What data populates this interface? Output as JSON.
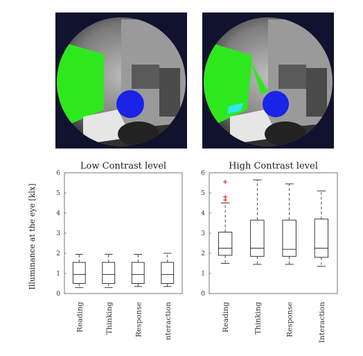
{
  "chart_data": [
    {
      "type": "box",
      "title": "Low Contrast level",
      "ylabel": "Illuminance at the eye [klx]",
      "ylim": [
        0,
        6
      ],
      "yticks": [
        "0",
        "1",
        "2",
        "3",
        "4",
        "5",
        "6"
      ],
      "categories": [
        "Reading",
        "Thinking",
        "Response",
        "nteraction"
      ],
      "boxes": [
        {
          "whislo": 0.3,
          "q1": 0.5,
          "med": 0.95,
          "q3": 1.55,
          "whishi": 1.95,
          "fliers": []
        },
        {
          "whislo": 0.3,
          "q1": 0.5,
          "med": 0.95,
          "q3": 1.55,
          "whishi": 1.95,
          "fliers": []
        },
        {
          "whislo": 0.35,
          "q1": 0.5,
          "med": 0.95,
          "q3": 1.55,
          "whishi": 1.95,
          "fliers": []
        },
        {
          "whislo": 0.35,
          "q1": 0.5,
          "med": 0.95,
          "q3": 1.55,
          "whishi": 2.0,
          "fliers": []
        }
      ]
    },
    {
      "type": "box",
      "title": "High Contrast level",
      "ylim": [
        0,
        6
      ],
      "yticks": [
        "0",
        "1",
        "2",
        "3",
        "4",
        "5",
        "6"
      ],
      "categories": [
        "Reading",
        "Thinking",
        "Response",
        "Interaction"
      ],
      "boxes": [
        {
          "whislo": 1.5,
          "q1": 1.9,
          "med": 2.25,
          "q3": 3.05,
          "whishi": 4.5,
          "fliers": [
            4.65,
            4.8,
            5.55
          ]
        },
        {
          "whislo": 1.45,
          "q1": 1.85,
          "med": 2.25,
          "q3": 3.65,
          "whishi": 5.65,
          "fliers": []
        },
        {
          "whislo": 1.45,
          "q1": 1.85,
          "med": 2.2,
          "q3": 3.65,
          "whishi": 5.45,
          "fliers": []
        },
        {
          "whislo": 1.35,
          "q1": 1.8,
          "med": 2.25,
          "q3": 3.7,
          "whishi": 5.1,
          "fliers": []
        }
      ]
    }
  ],
  "colors": {
    "glare_green": "#2ee81e",
    "eye_blue": "#1a24e6",
    "cyan_patch": "#2fe8e8",
    "outlier_red": "#e01010",
    "photo_bg": "#10122e"
  }
}
